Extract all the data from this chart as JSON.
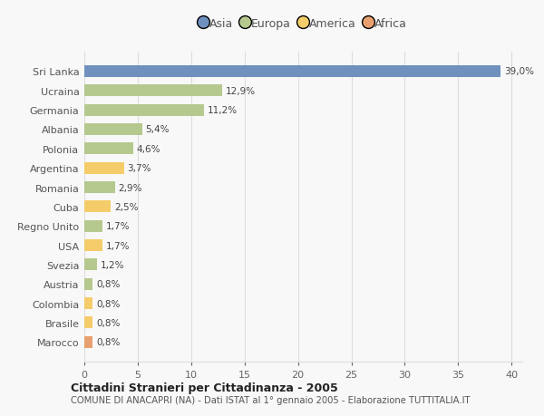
{
  "categories": [
    "Sri Lanka",
    "Ucraina",
    "Germania",
    "Albania",
    "Polonia",
    "Argentina",
    "Romania",
    "Cuba",
    "Regno Unito",
    "USA",
    "Svezia",
    "Austria",
    "Colombia",
    "Brasile",
    "Marocco"
  ],
  "values": [
    39.0,
    12.9,
    11.2,
    5.4,
    4.6,
    3.7,
    2.9,
    2.5,
    1.7,
    1.7,
    1.2,
    0.8,
    0.8,
    0.8,
    0.8
  ],
  "labels": [
    "39,0%",
    "12,9%",
    "11,2%",
    "5,4%",
    "4,6%",
    "3,7%",
    "2,9%",
    "2,5%",
    "1,7%",
    "1,7%",
    "1,2%",
    "0,8%",
    "0,8%",
    "0,8%",
    "0,8%"
  ],
  "continents": [
    "Asia",
    "Europa",
    "Europa",
    "Europa",
    "Europa",
    "America",
    "Europa",
    "America",
    "Europa",
    "America",
    "Europa",
    "Europa",
    "America",
    "America",
    "Africa"
  ],
  "colors": {
    "Asia": "#7090be",
    "Europa": "#b5c98e",
    "America": "#f5cc6a",
    "Africa": "#e8a070"
  },
  "legend_labels": [
    "Asia",
    "Europa",
    "America",
    "Africa"
  ],
  "legend_colors": [
    "#7090be",
    "#b5c98e",
    "#f5cc6a",
    "#e8a070"
  ],
  "xlim": [
    0,
    41
  ],
  "xticks": [
    0,
    5,
    10,
    15,
    20,
    25,
    30,
    35,
    40
  ],
  "title1": "Cittadini Stranieri per Cittadinanza - 2005",
  "title2": "COMUNE DI ANACAPRI (NA) - Dati ISTAT al 1° gennaio 2005 - Elaborazione TUTTITALIA.IT",
  "background_color": "#f8f8f8",
  "grid_color": "#dddddd",
  "bar_height": 0.6
}
